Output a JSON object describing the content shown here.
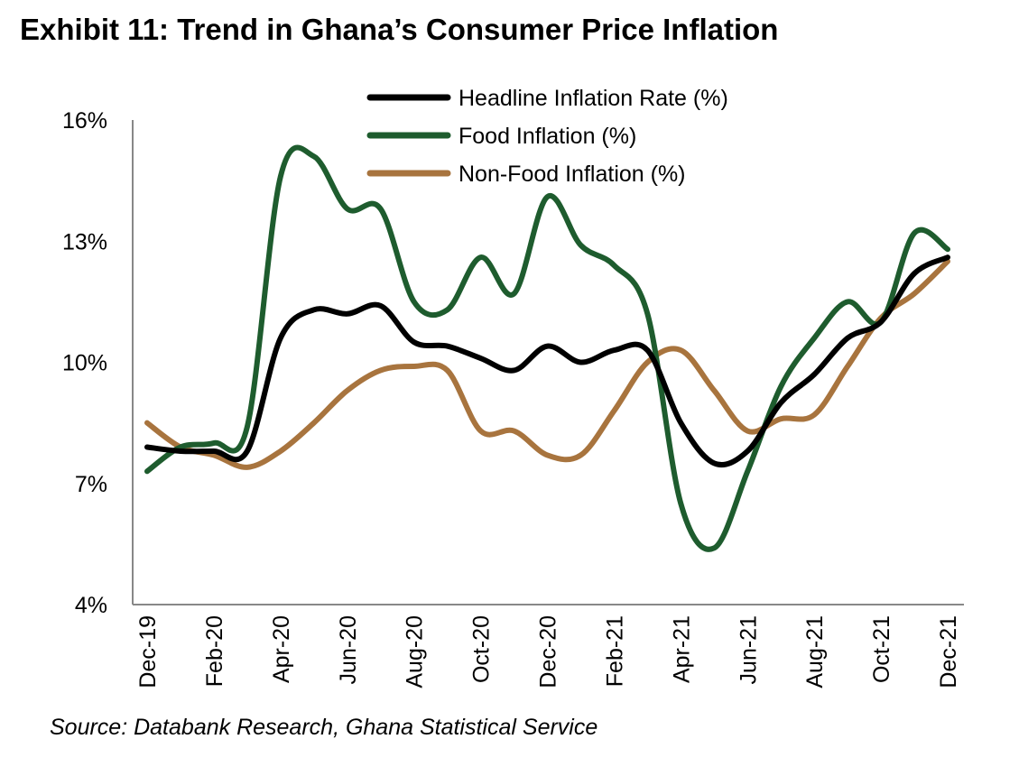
{
  "chart_data": {
    "type": "line",
    "title": "Exhibit 11: Trend in Ghana’s Consumer Price Inflation",
    "source": "Source: Databank Research, Ghana Statistical Service",
    "xlabel": "",
    "ylabel": "",
    "ylim": [
      4,
      16
    ],
    "yticks": [
      "4%",
      "7%",
      "10%",
      "13%",
      "16%"
    ],
    "ytick_values": [
      4,
      7,
      10,
      13,
      16
    ],
    "x": [
      "Dec-19",
      "Jan-20",
      "Feb-20",
      "Mar-20",
      "Apr-20",
      "May-20",
      "Jun-20",
      "Jul-20",
      "Aug-20",
      "Sep-20",
      "Oct-20",
      "Nov-20",
      "Dec-20",
      "Jan-21",
      "Feb-21",
      "Mar-21",
      "Apr-21",
      "May-21",
      "Jun-21",
      "Jul-21",
      "Aug-21",
      "Sep-21",
      "Oct-21",
      "Nov-21",
      "Dec-21"
    ],
    "xtick_labels": [
      "Dec-19",
      "Feb-20",
      "Apr-20",
      "Jun-20",
      "Aug-20",
      "Oct-20",
      "Dec-20",
      "Feb-21",
      "Apr-21",
      "Jun-21",
      "Aug-21",
      "Oct-21",
      "Dec-21"
    ],
    "grid": false,
    "legend_position": "top",
    "series": [
      {
        "name": "Headline Inflation Rate (%)",
        "color": "#000000",
        "values": [
          7.9,
          7.8,
          7.8,
          7.8,
          10.6,
          11.3,
          11.2,
          11.4,
          10.5,
          10.4,
          10.1,
          9.8,
          10.4,
          10.0,
          10.3,
          10.3,
          8.5,
          7.5,
          7.8,
          9.0,
          9.7,
          10.6,
          11.0,
          12.2,
          12.6
        ]
      },
      {
        "name": "Food Inflation (%)",
        "color": "#1e5c2e",
        "values": [
          7.3,
          7.9,
          8.0,
          8.4,
          14.6,
          15.1,
          13.8,
          13.8,
          11.5,
          11.3,
          12.6,
          11.7,
          14.1,
          12.9,
          12.4,
          11.2,
          6.5,
          5.4,
          7.3,
          9.4,
          10.6,
          11.5,
          11.0,
          13.2,
          12.8
        ]
      },
      {
        "name": "Non-Food Inflation (%)",
        "color": "#a8743e",
        "values": [
          8.5,
          7.9,
          7.7,
          7.4,
          7.8,
          8.5,
          9.3,
          9.8,
          9.9,
          9.8,
          8.3,
          8.3,
          7.7,
          7.7,
          8.8,
          10.0,
          10.3,
          9.3,
          8.3,
          8.6,
          8.7,
          9.9,
          11.1,
          11.7,
          12.5
        ]
      }
    ]
  }
}
